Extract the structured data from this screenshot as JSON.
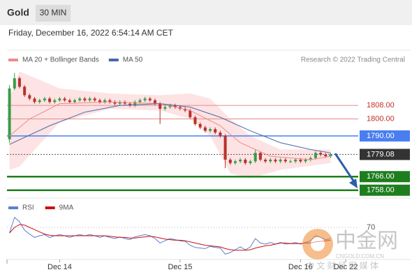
{
  "header": {
    "title": "Gold",
    "interval": "30 MIN",
    "timestamp": "Friday, December 16, 2022 6:54:14 AM CET"
  },
  "chart_data": [
    {
      "type": "candlestick",
      "x": [
        -10,
        -9,
        -8,
        -7,
        -6,
        -5,
        -4,
        -3,
        -2,
        -1,
        0,
        1,
        2,
        3,
        4,
        5,
        6,
        7,
        8,
        9,
        10,
        11,
        12,
        13,
        14,
        15,
        16,
        17,
        18,
        19,
        20,
        21,
        22,
        23,
        24,
        25,
        26,
        27,
        28,
        29,
        30,
        31,
        32,
        33,
        34,
        35,
        36,
        37,
        38,
        39,
        40,
        41,
        42,
        43,
        44,
        45,
        46,
        47,
        48,
        49,
        50,
        51,
        52,
        53,
        54
      ],
      "open": [
        1788,
        1818,
        1824,
        1819,
        1814,
        1812,
        1810,
        1811,
        1812,
        1810,
        1811,
        1812,
        1811,
        1810,
        1811,
        1812,
        1811,
        1812,
        1811,
        1810,
        1811,
        1810,
        1809,
        1810,
        1809,
        1808,
        1810,
        1811,
        1812,
        1811,
        1809,
        1806,
        1807,
        1808,
        1807,
        1806,
        1805,
        1801,
        1797,
        1795,
        1793,
        1794,
        1792,
        1790,
        1776,
        1774,
        1775,
        1776,
        1774,
        1775,
        1780,
        1776,
        1775,
        1776,
        1775,
        1776,
        1775,
        1775,
        1776,
        1775,
        1776,
        1777,
        1780,
        1779,
        1778
      ],
      "high": [
        1820,
        1827,
        1825,
        1820,
        1815,
        1813,
        1812,
        1813,
        1813,
        1812,
        1813,
        1813,
        1812,
        1812,
        1813,
        1813,
        1813,
        1813,
        1812,
        1812,
        1812,
        1811,
        1811,
        1811,
        1810,
        1811,
        1812,
        1813,
        1813,
        1812,
        1810,
        1808,
        1809,
        1809,
        1808,
        1807,
        1806,
        1802,
        1798,
        1796,
        1795,
        1795,
        1793,
        1791,
        1777,
        1776,
        1777,
        1777,
        1776,
        1782,
        1781,
        1777,
        1777,
        1777,
        1777,
        1777,
        1776,
        1777,
        1777,
        1777,
        1778,
        1781,
        1781,
        1780,
        1780
      ],
      "low": [
        1786,
        1817,
        1818,
        1813,
        1811,
        1809,
        1809,
        1810,
        1809,
        1809,
        1810,
        1810,
        1809,
        1809,
        1810,
        1810,
        1810,
        1810,
        1809,
        1809,
        1809,
        1808,
        1808,
        1808,
        1807,
        1807,
        1809,
        1810,
        1810,
        1808,
        1797,
        1805,
        1806,
        1806,
        1805,
        1804,
        1800,
        1796,
        1794,
        1792,
        1792,
        1791,
        1789,
        1771,
        1773,
        1773,
        1774,
        1773,
        1773,
        1774,
        1775,
        1774,
        1774,
        1774,
        1774,
        1774,
        1774,
        1774,
        1774,
        1774,
        1775,
        1776,
        1778,
        1777,
        1777
      ],
      "close": [
        1818,
        1824,
        1819,
        1814,
        1812,
        1810,
        1811,
        1812,
        1810,
        1811,
        1812,
        1811,
        1810,
        1811,
        1812,
        1811,
        1812,
        1811,
        1810,
        1811,
        1810,
        1809,
        1810,
        1809,
        1808,
        1810,
        1811,
        1812,
        1811,
        1809,
        1806,
        1807,
        1808,
        1807,
        1806,
        1805,
        1801,
        1797,
        1795,
        1793,
        1794,
        1792,
        1790,
        1776,
        1774,
        1775,
        1776,
        1774,
        1775,
        1780,
        1776,
        1775,
        1776,
        1775,
        1776,
        1775,
        1775,
        1776,
        1775,
        1776,
        1777,
        1780,
        1779,
        1778,
        1779.08
      ],
      "up_color": "#3a9a4a",
      "down_color": "#b8322a",
      "xlim": [
        -10.5,
        59.5
      ],
      "ylim": [
        1755,
        1829
      ],
      "series": [
        {
          "name": "MA 20 + Bollinger Bands",
          "color": "#f08a8a",
          "x": [
            -10,
            -6,
            0,
            10,
            20,
            26,
            32,
            36,
            42,
            50,
            54
          ],
          "values": [
            1790,
            1800,
            1809,
            1810,
            1809,
            1805,
            1796,
            1786,
            1778,
            1776,
            1778
          ]
        },
        {
          "name": "MA 50",
          "color": "#4a68a8",
          "x": [
            -10,
            -2,
            5,
            12,
            20,
            26,
            32,
            38,
            44,
            50,
            54
          ],
          "values": [
            1785,
            1796,
            1804,
            1808,
            1809,
            1807,
            1801,
            1793,
            1786,
            1782,
            1780
          ]
        }
      ],
      "band": {
        "color": "#fde3e3",
        "x": [
          -10,
          -8,
          0,
          10,
          20,
          26,
          30,
          34,
          38,
          44,
          54
        ],
        "upper": [
          1812,
          1828,
          1818,
          1815,
          1814,
          1815,
          1812,
          1800,
          1790,
          1782,
          1782
        ],
        "lower": [
          1770,
          1772,
          1798,
          1806,
          1805,
          1800,
          1790,
          1768,
          1765,
          1770,
          1774
        ]
      },
      "levels": [
        {
          "value": 1808,
          "label": "1808.00",
          "color": "#e88a8a",
          "style": "text"
        },
        {
          "value": 1800,
          "label": "1800.00",
          "color": "#e88a8a",
          "style": "text"
        },
        {
          "value": 1790,
          "label": "1790.00",
          "color": "#4a7ef0",
          "style": "box"
        },
        {
          "value": 1779.08,
          "label": "1779.08",
          "color": "#333333",
          "style": "box",
          "dashed": true
        },
        {
          "value": 1766,
          "label": "1766.00",
          "color": "#1e7e1e",
          "style": "box"
        },
        {
          "value": 1758,
          "label": "1758.00",
          "color": "#1e7e1e",
          "style": "box"
        }
      ],
      "credit": "Research © 2022 Trading Central"
    },
    {
      "type": "line",
      "x": [
        -10,
        -9,
        -8,
        -7,
        -6,
        -5,
        -4,
        -3,
        -2,
        -1,
        0,
        1,
        2,
        3,
        4,
        5,
        6,
        7,
        8,
        9,
        10,
        11,
        12,
        13,
        14,
        15,
        16,
        17,
        18,
        19,
        20,
        21,
        22,
        23,
        24,
        25,
        26,
        27,
        28,
        29,
        30,
        31,
        32,
        33,
        34,
        35,
        36,
        37,
        38,
        39,
        40,
        41,
        42,
        43,
        44,
        45,
        46,
        47,
        48,
        49,
        50,
        51,
        52,
        53,
        54
      ],
      "series": [
        {
          "name": "RSI",
          "color": "#5a7fd0",
          "values": [
            60,
            88,
            80,
            65,
            58,
            52,
            55,
            57,
            52,
            55,
            57,
            55,
            52,
            55,
            57,
            55,
            57,
            55,
            52,
            55,
            52,
            50,
            53,
            50,
            48,
            53,
            55,
            57,
            55,
            50,
            42,
            46,
            50,
            48,
            46,
            45,
            38,
            34,
            33,
            32,
            36,
            34,
            33,
            22,
            25,
            30,
            35,
            30,
            35,
            50,
            42,
            40,
            43,
            40,
            43,
            40,
            41,
            43,
            40,
            43,
            46,
            55,
            52,
            48,
            50
          ]
        },
        {
          "name": "9MA",
          "color": "#cc1111",
          "values": [
            60,
            70,
            75,
            74,
            70,
            66,
            62,
            58,
            56,
            55,
            55,
            55,
            55,
            55,
            55,
            55,
            55,
            55,
            55,
            55,
            54,
            53,
            52,
            52,
            51,
            51,
            52,
            53,
            54,
            53,
            51,
            49,
            48,
            47,
            47,
            46,
            44,
            42,
            40,
            38,
            37,
            36,
            35,
            32,
            30,
            29,
            29,
            29,
            30,
            33,
            35,
            37,
            38,
            40,
            42,
            42,
            41,
            41,
            41,
            42,
            42,
            44,
            45,
            46,
            47
          ]
        }
      ],
      "xlim": [
        -10.5,
        59.5
      ],
      "ylim": [
        15,
        100
      ],
      "yticks": [
        70
      ],
      "xticks": [
        {
          "value": 0,
          "label": "Dec 14"
        },
        {
          "value": 24,
          "label": "Dec 15"
        },
        {
          "value": 48,
          "label": "Dec 16"
        },
        {
          "value": 57,
          "label": "Dec 22"
        }
      ]
    }
  ],
  "watermark": {
    "name": "中金网",
    "domain": "CNGOLD.COM.CN",
    "slogan": "中 文 财 经 网 媒 体"
  }
}
